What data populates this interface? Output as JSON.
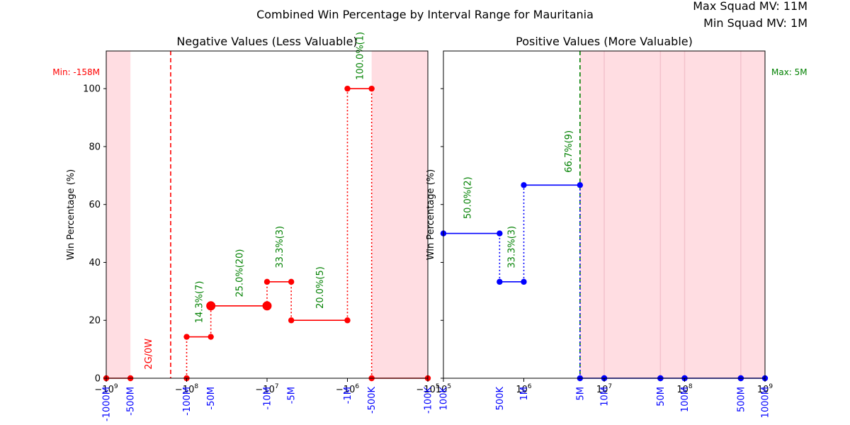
{
  "figure": {
    "suptitle": "Combined Win Percentage by Interval Range for Mauritania",
    "max_label": "Max Squad MV: 11M",
    "min_label": "Min Squad MV: 1M"
  },
  "colors": {
    "neg_series": "#ff0000",
    "pos_series": "#0000ff",
    "annotation": "#008000",
    "shade": "#ffdde2",
    "blue_text": "#0000ff",
    "red_text": "#ff0000"
  },
  "chart_data": [
    {
      "type": "line",
      "title": "Negative Values (Less Valuable)",
      "ylabel": "Win Percentage (%)",
      "xscale": "symlog-negative",
      "xlim": [
        -1000000000,
        -100000
      ],
      "ylim": [
        0,
        113
      ],
      "yticks": [
        0,
        20,
        40,
        60,
        80,
        100
      ],
      "ytick_labels": [
        "0",
        "20",
        "40",
        "60",
        "80",
        "100"
      ],
      "xticks_major": [
        {
          "value": -1000000000,
          "base": "−10",
          "exp": "9"
        },
        {
          "value": -100000000,
          "base": "−10",
          "exp": "8"
        },
        {
          "value": -10000000,
          "base": "−10",
          "exp": "7"
        },
        {
          "value": -1000000,
          "base": "−10",
          "exp": "6"
        },
        {
          "value": -100000,
          "base": "−10",
          "exp": "5"
        }
      ],
      "range_labels": [
        {
          "value": -1000000000,
          "text": "-1000M"
        },
        {
          "value": -500000000,
          "text": "-500M"
        },
        {
          "value": -100000000,
          "text": "-100M"
        },
        {
          "value": -50000000,
          "text": "-50M"
        },
        {
          "value": -10000000,
          "text": "-10M"
        },
        {
          "value": -5000000,
          "text": "-5M"
        },
        {
          "value": -1000000,
          "text": "-1M"
        },
        {
          "value": -500000,
          "text": "-500K"
        },
        {
          "value": -100000,
          "text": "-100K"
        }
      ],
      "shaded_regions": [
        [
          -1000000000,
          -500000000
        ],
        [
          -500000,
          -100000
        ]
      ],
      "vline": {
        "value": -158000000,
        "label": "Min: -158M"
      },
      "segments": [
        {
          "x": [
            -1000000000,
            -500000000
          ],
          "y": [
            0,
            0
          ],
          "large": false
        },
        {
          "x": [
            -500000,
            -100000
          ],
          "y": [
            0,
            0
          ],
          "large": false
        },
        {
          "x": [
            -100000000,
            -50000000
          ],
          "y": [
            14.3,
            14.3
          ],
          "large": false
        },
        {
          "x": [
            -50000000,
            -10000000
          ],
          "y": [
            25.0,
            25.0
          ],
          "large": true
        },
        {
          "x": [
            -10000000,
            -5000000
          ],
          "y": [
            33.3,
            33.3
          ],
          "large": false
        },
        {
          "x": [
            -5000000,
            -1000000
          ],
          "y": [
            20.0,
            20.0
          ],
          "large": false
        },
        {
          "x": [
            -1000000,
            -500000
          ],
          "y": [
            100.0,
            100.0
          ],
          "large": false
        }
      ],
      "extra_points": [
        {
          "x": -100000000,
          "y": 0
        }
      ],
      "connectors": [
        {
          "x": -100000000,
          "y": [
            0,
            14.3
          ]
        },
        {
          "x": -50000000,
          "y": [
            14.3,
            25.0
          ]
        },
        {
          "x": -10000000,
          "y": [
            25.0,
            33.3
          ]
        },
        {
          "x": -5000000,
          "y": [
            20.0,
            33.3
          ]
        },
        {
          "x": -1000000,
          "y": [
            20.0,
            100.0
          ]
        },
        {
          "x": -500000,
          "y": [
            0,
            100.0
          ]
        }
      ],
      "annotations": [
        {
          "x": -300000000,
          "y": 3,
          "text": "2G/0W",
          "color": "red"
        },
        {
          "x": -70000000,
          "y": 19,
          "text": "14.3%(7)",
          "color": "green"
        },
        {
          "x": -22000000,
          "y": 28,
          "text": "25.0%(20)",
          "color": "green"
        },
        {
          "x": -7000000,
          "y": 38,
          "text": "33.3%(3)",
          "color": "green"
        },
        {
          "x": -2200000,
          "y": 24,
          "text": "20.0%(5)",
          "color": "green"
        },
        {
          "x": -700000,
          "y": 103,
          "text": "100.0%(1)",
          "color": "green"
        }
      ]
    },
    {
      "type": "line",
      "title": "Positive Values (More Valuable)",
      "ylabel": "Win Percentage (%)",
      "xscale": "log",
      "xlim": [
        100000,
        1000000000
      ],
      "ylim": [
        0,
        113
      ],
      "yticks": [
        0,
        20,
        40,
        60,
        80,
        100
      ],
      "xticks_major": [
        {
          "value": 100000,
          "base": "10",
          "exp": "5"
        },
        {
          "value": 1000000,
          "base": "10",
          "exp": "6"
        },
        {
          "value": 10000000,
          "base": "10",
          "exp": "7"
        },
        {
          "value": 100000000,
          "base": "10",
          "exp": "8"
        },
        {
          "value": 1000000000,
          "base": "10",
          "exp": "9"
        }
      ],
      "range_labels": [
        {
          "value": 100000,
          "text": "100K"
        },
        {
          "value": 500000,
          "text": "500K"
        },
        {
          "value": 1000000,
          "text": "1M"
        },
        {
          "value": 5000000,
          "text": "5M"
        },
        {
          "value": 10000000,
          "text": "10M"
        },
        {
          "value": 50000000,
          "text": "50M"
        },
        {
          "value": 100000000,
          "text": "100M"
        },
        {
          "value": 500000000,
          "text": "500M"
        },
        {
          "value": 1000000000,
          "text": "1000M"
        }
      ],
      "shaded_regions": [
        [
          5000000,
          1000000000
        ]
      ],
      "shade_dividers": [
        10000000,
        50000000,
        100000000,
        500000000
      ],
      "vline": {
        "value": 5000000,
        "label": "Max: 5M"
      },
      "segments": [
        {
          "x": [
            100000,
            500000
          ],
          "y": [
            50.0,
            50.0
          ],
          "large": false
        },
        {
          "x": [
            500000,
            1000000
          ],
          "y": [
            33.3,
            33.3
          ],
          "large": false
        },
        {
          "x": [
            1000000,
            5000000
          ],
          "y": [
            66.7,
            66.7
          ],
          "large": false
        },
        {
          "x": [
            5000000,
            10000000
          ],
          "y": [
            0,
            0
          ],
          "large": false
        },
        {
          "x": [
            10000000,
            50000000
          ],
          "y": [
            0,
            0
          ],
          "large": false
        },
        {
          "x": [
            50000000,
            100000000
          ],
          "y": [
            0,
            0
          ],
          "large": false
        },
        {
          "x": [
            100000000,
            500000000
          ],
          "y": [
            0,
            0
          ],
          "large": false
        },
        {
          "x": [
            500000000,
            1000000000
          ],
          "y": [
            0,
            0
          ],
          "large": false
        }
      ],
      "extra_points": [],
      "connectors": [
        {
          "x": 500000,
          "y": [
            33.3,
            50.0
          ]
        },
        {
          "x": 1000000,
          "y": [
            33.3,
            66.7
          ]
        },
        {
          "x": 5000000,
          "y": [
            0,
            66.7
          ]
        }
      ],
      "annotations": [
        {
          "x": 200000,
          "y": 55,
          "text": "50.0%(2)",
          "color": "green"
        },
        {
          "x": 700000,
          "y": 38,
          "text": "33.3%(3)",
          "color": "green"
        },
        {
          "x": 3600000,
          "y": 71,
          "text": "66.7%(9)",
          "color": "green"
        }
      ]
    }
  ]
}
